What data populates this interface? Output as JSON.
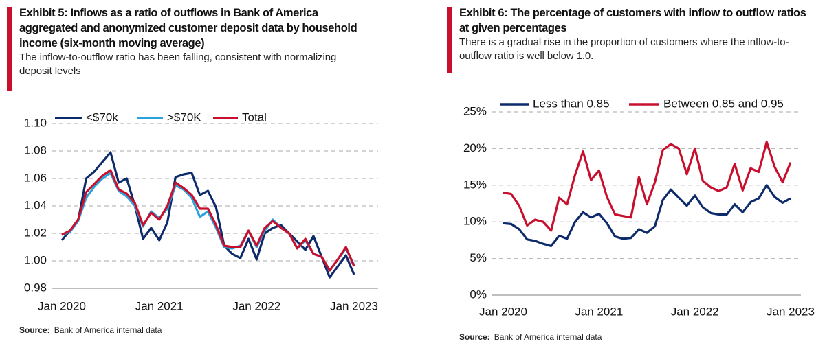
{
  "chart_data": [
    {
      "type": "line",
      "title": "Exhibit 5: Inflows as a ratio of outflows  in Bank of America aggregated and anonymized customer deposit data by household income (six-month moving average)",
      "subtitle": "The inflow-to-outflow ratio has been falling, consistent with normalizing deposit levels",
      "source_label": "Source:",
      "source": "Bank of America internal data",
      "categories": [
        "Jan 2020",
        null,
        null,
        null,
        null,
        null,
        null,
        null,
        null,
        null,
        null,
        null,
        "Jan 2021",
        null,
        null,
        null,
        null,
        null,
        null,
        null,
        null,
        null,
        null,
        null,
        "Jan 2022",
        null,
        null,
        null,
        null,
        null,
        null,
        null,
        null,
        null,
        null,
        null,
        "Jan 2023"
      ],
      "series": [
        {
          "name": "<$70k",
          "color": "#0d2a6b",
          "values": [
            1.015,
            1.022,
            1.029,
            1.06,
            1.065,
            1.072,
            1.079,
            1.057,
            1.06,
            1.04,
            1.016,
            1.024,
            1.015,
            1.028,
            1.061,
            1.063,
            1.064,
            1.048,
            1.051,
            1.039,
            1.011,
            1.005,
            1.002,
            1.016,
            1.001,
            1.02,
            1.024,
            1.026,
            1.02,
            1.014,
            1.008,
            1.018,
            1.003,
            0.988,
            0.996,
            1.004,
            0.99
          ]
        },
        {
          "name": ">$70K",
          "color": "#2aa3dc",
          "values": [
            1.019,
            1.021,
            1.029,
            1.046,
            1.054,
            1.06,
            1.064,
            1.051,
            1.047,
            1.04,
            1.025,
            1.036,
            1.031,
            1.038,
            1.055,
            1.052,
            1.046,
            1.032,
            1.036,
            1.024,
            1.01,
            1.009,
            1.011,
            1.022,
            1.01,
            1.022,
            1.03,
            1.024,
            1.02,
            1.009,
            1.015,
            1.005,
            1.003,
            0.993,
            1.001,
            1.009,
            0.997
          ]
        },
        {
          "name": "Total",
          "color": "#c8102e",
          "values": [
            1.019,
            1.022,
            1.03,
            1.05,
            1.056,
            1.062,
            1.066,
            1.052,
            1.049,
            1.042,
            1.026,
            1.035,
            1.03,
            1.04,
            1.057,
            1.053,
            1.048,
            1.038,
            1.038,
            1.026,
            1.011,
            1.01,
            1.01,
            1.022,
            1.011,
            1.024,
            1.029,
            1.024,
            1.02,
            1.009,
            1.016,
            1.005,
            1.003,
            0.993,
            1.001,
            1.01,
            0.996
          ]
        }
      ],
      "ylim": [
        0.98,
        1.1
      ],
      "yticks": [
        0.98,
        {
          "value": 1.0,
          "label": "1.00"
        },
        1.02,
        1.04,
        1.06,
        1.08,
        {
          "value": 1.1,
          "label": "1.10"
        }
      ],
      "grid": true,
      "legend": "top"
    },
    {
      "type": "line",
      "title": "Exhibit 6: The percentage of customers with inflow to outflow ratios at given percentages",
      "subtitle": "There is a gradual rise in the proportion of customers where the inflow-to-outflow ratio is well below 1.0.",
      "source_label": "Source:",
      "source": "Bank of America internal data",
      "categories": [
        "Jan 2020",
        null,
        null,
        null,
        null,
        null,
        null,
        null,
        null,
        null,
        null,
        null,
        "Jan 2021",
        null,
        null,
        null,
        null,
        null,
        null,
        null,
        null,
        null,
        null,
        null,
        "Jan 2022",
        null,
        null,
        null,
        null,
        null,
        null,
        null,
        null,
        null,
        null,
        null,
        "Jan 2023"
      ],
      "series": [
        {
          "name": "Less than 0.85",
          "color": "#0d2a6b",
          "values": [
            9.8,
            9.7,
            9.0,
            7.6,
            7.4,
            7.0,
            6.7,
            8.1,
            7.7,
            10.0,
            11.3,
            10.6,
            11.1,
            9.8,
            8.0,
            7.7,
            7.8,
            9.0,
            8.5,
            9.4,
            13.0,
            14.4,
            13.3,
            12.2,
            13.6,
            12.0,
            11.2,
            11.0,
            11.0,
            12.4,
            11.3,
            12.7,
            13.2,
            15.0,
            13.4,
            12.6,
            13.2
          ]
        },
        {
          "name": "Between 0.85 and 0.95",
          "color": "#c8102e",
          "values": [
            14.0,
            13.8,
            12.2,
            9.5,
            10.3,
            10.0,
            8.8,
            13.3,
            12.4,
            16.4,
            19.6,
            15.7,
            17.0,
            13.4,
            11.0,
            10.8,
            10.6,
            16.1,
            12.4,
            15.4,
            19.8,
            20.6,
            20.0,
            16.5,
            20.0,
            15.6,
            14.7,
            14.2,
            14.7,
            17.9,
            14.3,
            17.3,
            16.8,
            20.9,
            17.5,
            15.4,
            18.1
          ]
        }
      ],
      "ylim": [
        0,
        25
      ],
      "yticks": [
        {
          "value": 0,
          "label": "0%"
        },
        {
          "value": 5,
          "label": "5%"
        },
        {
          "value": 10,
          "label": "10%"
        },
        {
          "value": 15,
          "label": "15%"
        },
        {
          "value": 20,
          "label": "20%"
        },
        {
          "value": 25,
          "label": "25%"
        }
      ],
      "grid": true,
      "legend": "top"
    }
  ]
}
